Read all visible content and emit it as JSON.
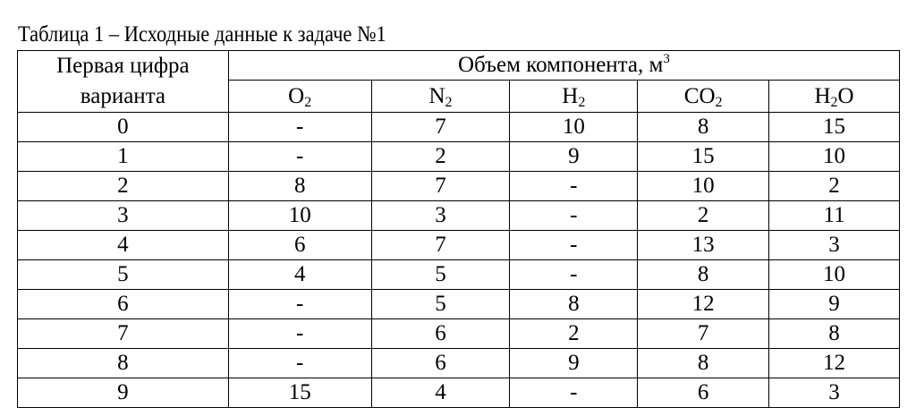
{
  "title": "Таблица 1 – Исходные данные к задаче №1",
  "header": {
    "first_col": [
      "Первая цифра",
      "варианта"
    ],
    "group": "Объем компонента, м",
    "group_sup": "3",
    "components": [
      {
        "base": "O",
        "sub": "2",
        "tail": ""
      },
      {
        "base": "N",
        "sub": "2",
        "tail": ""
      },
      {
        "base": "H",
        "sub": "2",
        "tail": ""
      },
      {
        "base": "CO",
        "sub": "2",
        "tail": ""
      },
      {
        "base": "H",
        "sub": "2",
        "tail": "O"
      }
    ]
  },
  "rows": [
    [
      "0",
      "-",
      "7",
      "10",
      "8",
      "15"
    ],
    [
      "1",
      "-",
      "2",
      "9",
      "15",
      "10"
    ],
    [
      "2",
      "8",
      "7",
      "-",
      "10",
      "2"
    ],
    [
      "3",
      "10",
      "3",
      "-",
      "2",
      "11"
    ],
    [
      "4",
      "6",
      "7",
      "-",
      "13",
      "3"
    ],
    [
      "5",
      "4",
      "5",
      "-",
      "8",
      "10"
    ],
    [
      "6",
      "-",
      "5",
      "8",
      "12",
      "9"
    ],
    [
      "7",
      "-",
      "6",
      "2",
      "7",
      "8"
    ],
    [
      "8",
      "-",
      "6",
      "9",
      "8",
      "12"
    ],
    [
      "9",
      "15",
      "4",
      "-",
      "6",
      "3"
    ]
  ]
}
